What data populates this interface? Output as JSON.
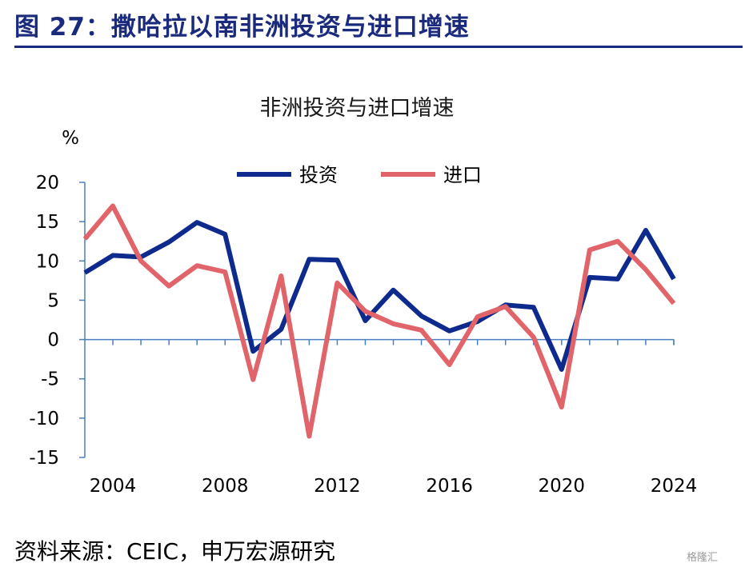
{
  "figure": {
    "title": "图 27：撒哈拉以南非洲投资与进口增速",
    "source": "资料来源：CEIC，申万宏源研究",
    "watermark": "格隆汇"
  },
  "chart_data": {
    "type": "line",
    "title": "非洲投资与进口增速",
    "ylabel": "%",
    "xlabel": "",
    "ylim": [
      -15,
      20
    ],
    "yticks": [
      20,
      15,
      10,
      5,
      0,
      -5,
      -10,
      -15
    ],
    "xlim": [
      2003,
      2024
    ],
    "xticks": [
      2004,
      2008,
      2012,
      2016,
      2020,
      2024
    ],
    "x": [
      2003,
      2004,
      2005,
      2006,
      2007,
      2008,
      2009,
      2010,
      2011,
      2012,
      2013,
      2014,
      2015,
      2016,
      2017,
      2018,
      2019,
      2020,
      2021,
      2022,
      2023,
      2024
    ],
    "legend_position": "top-center",
    "grid": false,
    "series": [
      {
        "name": "投资",
        "color": "#0d2a8c",
        "values": [
          8.5,
          10.7,
          10.5,
          12.4,
          14.9,
          13.4,
          -1.5,
          1.3,
          10.2,
          10.1,
          2.4,
          6.3,
          3.0,
          1.1,
          2.3,
          4.4,
          4.1,
          -3.8,
          7.9,
          7.7,
          13.9,
          7.7
        ]
      },
      {
        "name": "进口",
        "color": "#e06469",
        "values": [
          12.8,
          17.0,
          10.0,
          6.8,
          9.4,
          8.6,
          -5.1,
          8.1,
          -12.3,
          7.2,
          3.6,
          2.0,
          1.2,
          -3.2,
          2.9,
          4.2,
          0.3,
          -8.6,
          11.4,
          12.5,
          8.9,
          4.6
        ]
      }
    ]
  }
}
